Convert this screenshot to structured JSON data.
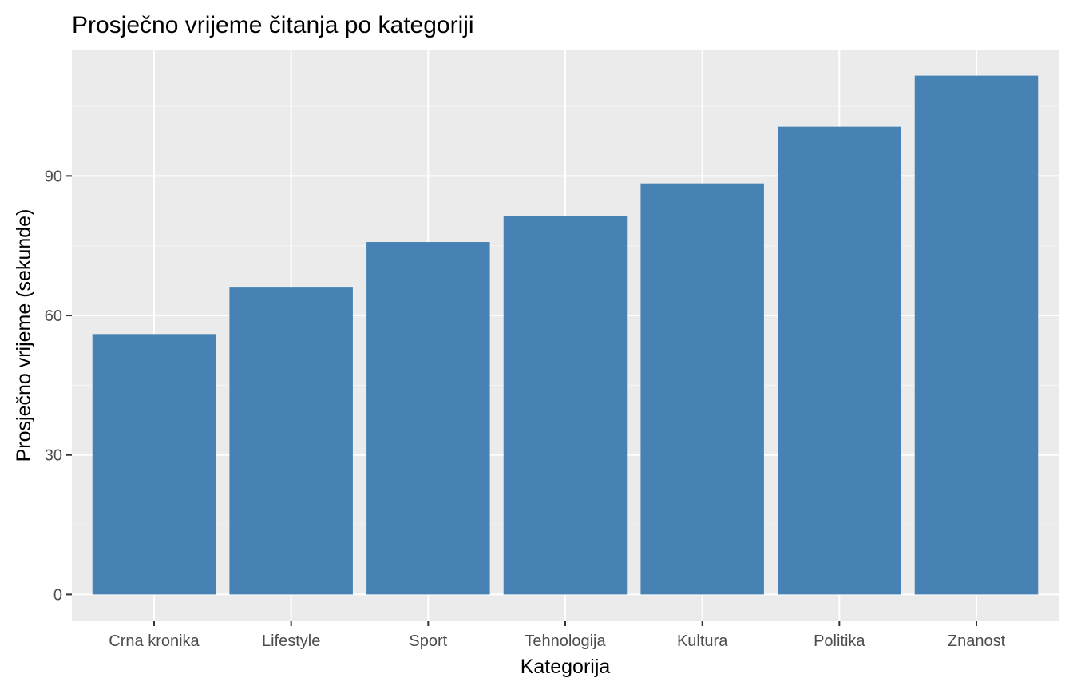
{
  "chart_data": {
    "type": "bar",
    "title": "Prosječno vrijeme čitanja po kategoriji",
    "xlabel": "Kategorija",
    "ylabel": "Prosječno vrijeme (sekunde)",
    "categories": [
      "Crna kronika",
      "Lifestyle",
      "Sport",
      "Tehnologija",
      "Kultura",
      "Politika",
      "Znanost"
    ],
    "values": [
      56,
      66,
      75.8,
      81.3,
      88.4,
      100.6,
      111.6
    ],
    "ylim": [
      -5.6,
      117.2
    ],
    "yticks": [
      0,
      30,
      60,
      90
    ],
    "ytick_labels": [
      "0",
      "30",
      "60",
      "90"
    ],
    "grid": true,
    "legend": "none"
  },
  "colors": {
    "bar": "#4682b4",
    "panel_background": "#ebebeb",
    "grid_major": "#ffffff",
    "grid_minor": "#f5f5f5",
    "tick": "#333333",
    "tick_label": "#4d4d4d"
  }
}
